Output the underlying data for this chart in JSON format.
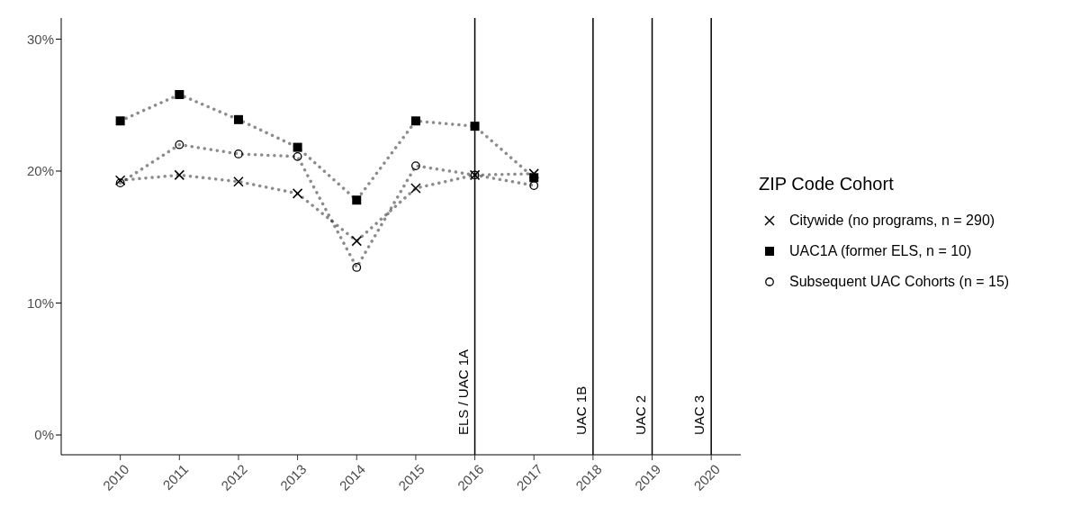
{
  "chart_data": {
    "type": "line",
    "x": [
      2010,
      2011,
      2012,
      2013,
      2014,
      2015,
      2016,
      2017
    ],
    "series": [
      {
        "name": "Citywide (no programs, n = 290)",
        "color": "#000000",
        "marker": "cross",
        "values": [
          19.3,
          19.7,
          19.2,
          18.3,
          14.7,
          18.7,
          19.7,
          19.8
        ]
      },
      {
        "name": "UAC1A (former ELS, n = 10)",
        "color": "#000000",
        "marker": "square",
        "values": [
          23.8,
          25.8,
          23.9,
          21.8,
          17.8,
          23.8,
          23.4,
          19.5
        ]
      },
      {
        "name": "Subsequent UAC Cohorts (n = 15)",
        "color": "#000000",
        "marker": "circle",
        "values": [
          19.1,
          22.0,
          21.3,
          21.1,
          12.7,
          20.4,
          19.7,
          18.9
        ]
      }
    ],
    "xlim": [
      2009,
      2020.5
    ],
    "xticks": [
      2010,
      2011,
      2012,
      2013,
      2014,
      2015,
      2016,
      2017,
      2018,
      2019,
      2020
    ],
    "ylim": [
      -1.5,
      31.6
    ],
    "yticks": [
      {
        "value": 0,
        "label": "0%"
      },
      {
        "value": 10,
        "label": "10%"
      },
      {
        "value": 20,
        "label": "20%"
      },
      {
        "value": 30,
        "label": "30%"
      }
    ],
    "ref_lines": [
      {
        "axis": "x",
        "value": 2016,
        "label": "ELS / UAC 1A",
        "color": "#000000"
      },
      {
        "axis": "x",
        "value": 2018,
        "label": "UAC 1B",
        "color": "#000000"
      },
      {
        "axis": "x",
        "value": 2019,
        "label": "UAC 2",
        "color": "#000000"
      },
      {
        "axis": "x",
        "value": 2020,
        "label": "UAC 3",
        "color": "#000000"
      }
    ],
    "legend_title": "ZIP Code Cohort",
    "legend": "right",
    "grid": false,
    "line_style": "dotted"
  }
}
